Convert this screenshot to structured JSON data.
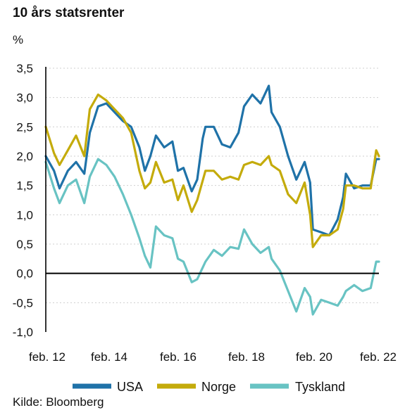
{
  "chart_data": {
    "type": "line",
    "title": "10 års statsrenter",
    "ylabel": "%",
    "source": "Kilde: Bloomberg",
    "x_ticks": [
      "feb. 12",
      "feb. 14",
      "feb. 16",
      "feb. 18",
      "feb. 20",
      "feb. 22"
    ],
    "y_ticks": [
      "3,5",
      "3,0",
      "2,5",
      "2,0",
      "1,5",
      "1,0",
      "0,5",
      "0,0",
      "-0,5",
      "-1,0"
    ],
    "ylim": [
      -1.0,
      3.5
    ],
    "xlim": [
      "2012-02",
      "2022-03"
    ],
    "grid": "horizontal-dashed",
    "legend_position": "bottom",
    "colors": {
      "USA": "#1f72a8",
      "Norge": "#c4ab0b",
      "Tyskland": "#68c3c3",
      "zero_line": "#000000",
      "grid": "#cfcfcf"
    },
    "series": [
      {
        "name": "USA",
        "x": [
          "2012-02",
          "2012-05",
          "2012-07",
          "2012-10",
          "2013-01",
          "2013-04",
          "2013-06",
          "2013-09",
          "2013-12",
          "2014-03",
          "2014-06",
          "2014-09",
          "2014-12",
          "2015-02",
          "2015-04",
          "2015-06",
          "2015-09",
          "2015-12",
          "2016-02",
          "2016-04",
          "2016-07",
          "2016-09",
          "2016-11",
          "2016-12",
          "2017-03",
          "2017-06",
          "2017-09",
          "2017-12",
          "2018-02",
          "2018-05",
          "2018-08",
          "2018-11",
          "2018-12",
          "2019-03",
          "2019-06",
          "2019-09",
          "2019-12",
          "2020-02",
          "2020-03",
          "2020-06",
          "2020-09",
          "2020-12",
          "2021-02",
          "2021-03",
          "2021-06",
          "2021-09",
          "2021-12",
          "2022-02",
          "2022-03"
        ],
        "values": [
          2.0,
          1.75,
          1.45,
          1.75,
          1.9,
          1.7,
          2.4,
          2.85,
          2.9,
          2.75,
          2.6,
          2.5,
          2.15,
          1.75,
          2.0,
          2.35,
          2.15,
          2.25,
          1.75,
          1.8,
          1.4,
          1.6,
          2.3,
          2.5,
          2.5,
          2.2,
          2.15,
          2.4,
          2.85,
          3.05,
          2.9,
          3.2,
          2.75,
          2.5,
          2.0,
          1.6,
          1.9,
          1.55,
          0.75,
          0.7,
          0.65,
          0.92,
          1.3,
          1.7,
          1.45,
          1.5,
          1.5,
          1.95,
          1.95
        ]
      },
      {
        "name": "Norge",
        "x": [
          "2012-02",
          "2012-05",
          "2012-07",
          "2012-10",
          "2013-01",
          "2013-04",
          "2013-06",
          "2013-09",
          "2013-12",
          "2014-03",
          "2014-06",
          "2014-09",
          "2014-12",
          "2015-02",
          "2015-04",
          "2015-06",
          "2015-09",
          "2015-12",
          "2016-02",
          "2016-04",
          "2016-07",
          "2016-09",
          "2016-12",
          "2017-03",
          "2017-06",
          "2017-09",
          "2017-12",
          "2018-02",
          "2018-05",
          "2018-08",
          "2018-11",
          "2018-12",
          "2019-03",
          "2019-06",
          "2019-09",
          "2019-12",
          "2020-02",
          "2020-03",
          "2020-06",
          "2020-09",
          "2020-12",
          "2021-02",
          "2021-03",
          "2021-06",
          "2021-09",
          "2021-12",
          "2022-02",
          "2022-03"
        ],
        "values": [
          2.5,
          2.05,
          1.85,
          2.1,
          2.35,
          2.0,
          2.8,
          3.05,
          2.95,
          2.8,
          2.65,
          2.4,
          1.75,
          1.45,
          1.55,
          1.9,
          1.55,
          1.6,
          1.25,
          1.5,
          1.05,
          1.25,
          1.75,
          1.75,
          1.6,
          1.65,
          1.6,
          1.85,
          1.9,
          1.85,
          2.0,
          1.85,
          1.75,
          1.35,
          1.2,
          1.55,
          1.0,
          0.45,
          0.65,
          0.65,
          0.75,
          1.1,
          1.5,
          1.5,
          1.45,
          1.45,
          2.1,
          2.0
        ]
      },
      {
        "name": "Tyskland",
        "x": [
          "2012-02",
          "2012-05",
          "2012-07",
          "2012-10",
          "2013-01",
          "2013-04",
          "2013-06",
          "2013-09",
          "2013-12",
          "2014-03",
          "2014-06",
          "2014-09",
          "2014-12",
          "2015-02",
          "2015-04",
          "2015-06",
          "2015-09",
          "2015-12",
          "2016-02",
          "2016-04",
          "2016-07",
          "2016-09",
          "2016-12",
          "2017-03",
          "2017-06",
          "2017-09",
          "2017-12",
          "2018-02",
          "2018-05",
          "2018-08",
          "2018-11",
          "2018-12",
          "2019-03",
          "2019-06",
          "2019-09",
          "2019-12",
          "2020-02",
          "2020-03",
          "2020-06",
          "2020-09",
          "2020-12",
          "2021-02",
          "2021-03",
          "2021-06",
          "2021-09",
          "2021-12",
          "2022-02",
          "2022-03"
        ],
        "values": [
          1.9,
          1.45,
          1.2,
          1.5,
          1.6,
          1.2,
          1.65,
          1.95,
          1.85,
          1.65,
          1.35,
          1.0,
          0.6,
          0.3,
          0.1,
          0.8,
          0.65,
          0.6,
          0.25,
          0.2,
          -0.15,
          -0.1,
          0.2,
          0.4,
          0.3,
          0.45,
          0.42,
          0.75,
          0.5,
          0.35,
          0.45,
          0.25,
          0.05,
          -0.3,
          -0.65,
          -0.25,
          -0.4,
          -0.7,
          -0.45,
          -0.5,
          -0.55,
          -0.4,
          -0.3,
          -0.2,
          -0.3,
          -0.25,
          0.2,
          0.2
        ]
      }
    ]
  }
}
